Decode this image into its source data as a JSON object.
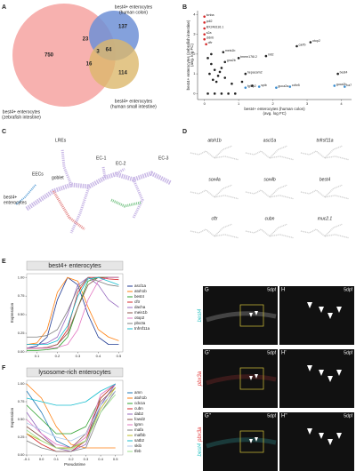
{
  "panel_letters": [
    "A",
    "B",
    "C",
    "D",
    "E",
    "F"
  ],
  "venn": {
    "labels": [
      [
        "best4+ enterocytes",
        "(human colon)"
      ],
      [
        "best4+ enterocytes",
        "(human small intestine)"
      ],
      [
        "best4+ enterocytes",
        "(zebrafish intestine)"
      ]
    ],
    "counts": [
      750,
      137,
      114,
      23,
      64,
      16,
      3
    ]
  },
  "umap": {
    "labels": [
      "LREs",
      "best4+",
      "enterocytes",
      "EECs",
      "goblet",
      "EC-1",
      "EC-2",
      "EC-3"
    ]
  },
  "genes": [
    "atoh1b",
    "ascl1a",
    "tnfrsf11a",
    "sox4a",
    "sox4b",
    "best4",
    "cftr",
    "cubn",
    "muc2.1"
  ],
  "images": {
    "panels": [
      "G",
      "H",
      "G'",
      "H'",
      "G''",
      "H''"
    ],
    "stage": "5dpf",
    "channels": [
      "best4",
      "pbx3a"
    ]
  },
  "chart_data": [
    {
      "type": "scatter",
      "x_label": [
        "best4+ enterocytes (human colon)",
        "(avg. log FC)"
      ],
      "y_label": [
        "best4+ enterocytes (zebrafish intestine)",
        "(avg. log FC)"
      ],
      "xlim": [
        -0.2,
        4.3
      ],
      "xticks": [
        0,
        1,
        2,
        3,
        4
      ],
      "ylim": [
        -0.3,
        4.2
      ],
      "yticks": [
        0,
        1,
        2,
        3,
        4
      ],
      "series": [
        {
          "color": "#d62728",
          "x": [
            0,
            0,
            0,
            0,
            0,
            0.05
          ],
          "values": [
            3.9,
            3.6,
            3.3,
            3.0,
            2.75,
            2.5
          ],
          "labels": [
            "tcnba",
            "pdl2",
            "BX248116.1",
            "s2a",
            "cldnb",
            "cftr"
          ]
        },
        {
          "color": "#222222",
          "x": [
            0.55,
            1.0,
            1.8,
            2.7,
            3.1,
            3.9,
            0.6,
            1.2
          ],
          "values": [
            2.1,
            1.8,
            1.9,
            2.4,
            2.6,
            1.0,
            1.6,
            1.0
          ],
          "labels": [
            "meis1b",
            "tmem176l.2",
            "mil2",
            "carfb",
            "otop2",
            "best4",
            "gna2b",
            "hepacam2"
          ]
        },
        {
          "color": "#222222",
          "x": [
            0.1,
            0.2,
            0.3,
            0.15,
            0.4,
            0.5,
            0.25,
            0.35,
            0.6,
            0.8,
            0.2,
            0.45,
            1.1,
            1.4,
            0.1,
            0.3,
            0.5,
            0.7,
            0.9
          ],
          "values": [
            1.8,
            1.5,
            1.2,
            1.0,
            0.9,
            1.3,
            0.7,
            0.6,
            0.8,
            0.5,
            2.0,
            1.1,
            0.6,
            0.4,
            0,
            0,
            0,
            0,
            0
          ]
        },
        {
          "color": "#3a8dd0",
          "x": [
            1.2,
            1.6,
            2.1,
            2.5,
            3.8,
            4.1
          ],
          "values": [
            0.3,
            0.35,
            0.3,
            0.35,
            0.4,
            0.35
          ],
          "labels": [
            "fgfbp2",
            "spib",
            "guca2a",
            "cdhr5",
            "guca2b",
            "ca7"
          ]
        }
      ]
    },
    {
      "type": "line",
      "title": "best4+ enterocytes",
      "y_label": "Expression",
      "x": [
        0.05,
        0.1,
        0.15,
        0.2,
        0.25,
        0.3,
        0.35,
        0.4,
        0.45,
        0.5
      ],
      "xlim": [
        0.05,
        0.52
      ],
      "xticks": [
        0.1,
        0.2,
        0.3,
        0.4,
        0.5
      ],
      "ylim": [
        0,
        1.05
      ],
      "yticks": [
        {
          "value": 0,
          "label": "0.00"
        },
        {
          "value": 0.25,
          "label": "0.25"
        },
        {
          "value": 0.5,
          "label": "0.50"
        },
        {
          "value": 0.75,
          "label": "0.75"
        },
        {
          "value": 1,
          "label": "1.00"
        }
      ],
      "series": [
        {
          "name": "ascl1a",
          "color": "#1f3a93",
          "values": [
            0.05,
            0.08,
            0.2,
            0.7,
            1.0,
            0.9,
            0.5,
            0.2,
            0.1,
            0.1
          ]
        },
        {
          "name": "atoh1b",
          "color": "#ff7f0e",
          "values": [
            0.1,
            0.12,
            0.3,
            0.8,
            1.0,
            0.95,
            0.6,
            0.3,
            0.2,
            0.15
          ]
        },
        {
          "name": "best4",
          "color": "#2ca02c",
          "values": [
            0.02,
            0.02,
            0.03,
            0.05,
            0.2,
            0.6,
            0.95,
            1.0,
            1.0,
            1.0
          ]
        },
        {
          "name": "cftr",
          "color": "#d62728",
          "values": [
            0.05,
            0.05,
            0.06,
            0.1,
            0.3,
            0.8,
            1.0,
            1.0,
            0.98,
            0.97
          ]
        },
        {
          "name": "dacha",
          "color": "#9467bd",
          "values": [
            0.1,
            0.1,
            0.12,
            0.2,
            0.5,
            0.9,
            1.0,
            0.9,
            0.7,
            0.6
          ]
        },
        {
          "name": "meis1b",
          "color": "#8c564b",
          "values": [
            0.05,
            0.05,
            0.06,
            0.1,
            0.25,
            0.6,
            0.9,
            1.0,
            1.0,
            1.0
          ]
        },
        {
          "name": "otop2",
          "color": "#e377c2",
          "values": [
            0.05,
            0.05,
            0.05,
            0.06,
            0.1,
            0.3,
            0.7,
            0.95,
            1.0,
            1.0
          ]
        },
        {
          "name": "pbx3a",
          "color": "#7f7f7f",
          "values": [
            0.2,
            0.2,
            0.22,
            0.3,
            0.55,
            0.85,
            1.0,
            0.95,
            0.9,
            0.88
          ]
        },
        {
          "name": "tnfrsf11a",
          "color": "#17becf",
          "values": [
            0.1,
            0.1,
            0.1,
            0.15,
            0.35,
            0.75,
            0.98,
            1.0,
            0.95,
            0.9
          ]
        }
      ]
    },
    {
      "type": "line",
      "title": "lysosome-rich enterocytes",
      "y_label": "Expression",
      "x_label": "Pseudotime",
      "x": [
        -0.1,
        0,
        0.1,
        0.2,
        0.3,
        0.4,
        0.5
      ],
      "xlim": [
        -0.1,
        0.55
      ],
      "xticks": [
        -0.1,
        {
          "value": 0,
          "label": "0.0"
        },
        0.1,
        0.2,
        0.3,
        0.4,
        0.5
      ],
      "ylim": [
        0,
        1.05
      ],
      "yticks": [
        {
          "value": 0,
          "label": "0.00"
        },
        {
          "value": 0.25,
          "label": "0.25"
        },
        {
          "value": 0.5,
          "label": "0.50"
        },
        {
          "value": 0.75,
          "label": "0.75"
        },
        {
          "value": 1,
          "label": "1.00"
        }
      ],
      "series": [
        {
          "name": "amn",
          "color": "#1f77b4",
          "values": [
            0.9,
            0.6,
            0.2,
            0.1,
            0.2,
            0.7,
            1.0
          ]
        },
        {
          "name": "atoh1b",
          "color": "#ff7f0e",
          "values": [
            1.0,
            0.8,
            0.4,
            0.15,
            0.1,
            0.1,
            0.1
          ]
        },
        {
          "name": "cdx1a",
          "color": "#2ca02c",
          "values": [
            0.7,
            0.5,
            0.3,
            0.3,
            0.4,
            0.8,
            1.0
          ]
        },
        {
          "name": "cubn",
          "color": "#d62728",
          "values": [
            0.3,
            0.15,
            0.05,
            0.05,
            0.2,
            0.8,
            1.0
          ]
        },
        {
          "name": "dab2",
          "color": "#9467bd",
          "values": [
            0.6,
            0.3,
            0.1,
            0.05,
            0.15,
            0.7,
            1.0
          ]
        },
        {
          "name": "fowd2",
          "color": "#8c564b",
          "values": [
            0.4,
            0.25,
            0.1,
            0.1,
            0.3,
            0.75,
            0.95
          ]
        },
        {
          "name": "lgmn",
          "color": "#e377c2",
          "values": [
            0.5,
            0.3,
            0.15,
            0.1,
            0.25,
            0.85,
            1.0
          ]
        },
        {
          "name": "mafa",
          "color": "#7f7f7f",
          "values": [
            0.2,
            0.1,
            0.05,
            0.05,
            0.1,
            0.6,
            0.9
          ]
        },
        {
          "name": "mafbb",
          "color": "#bcbd22",
          "values": [
            0.3,
            0.2,
            0.1,
            0.1,
            0.2,
            0.65,
            0.95
          ]
        },
        {
          "name": "satb2",
          "color": "#17becf",
          "values": [
            0.8,
            0.75,
            0.7,
            0.7,
            0.75,
            0.9,
            1.0
          ]
        },
        {
          "name": "skib",
          "color": "#aec7e8",
          "values": [
            0.45,
            0.35,
            0.25,
            0.2,
            0.3,
            0.7,
            0.9
          ]
        },
        {
          "name": "tfeb",
          "color": "#98df8a",
          "values": [
            0.35,
            0.2,
            0.1,
            0.08,
            0.2,
            0.6,
            0.85
          ]
        }
      ]
    }
  ]
}
